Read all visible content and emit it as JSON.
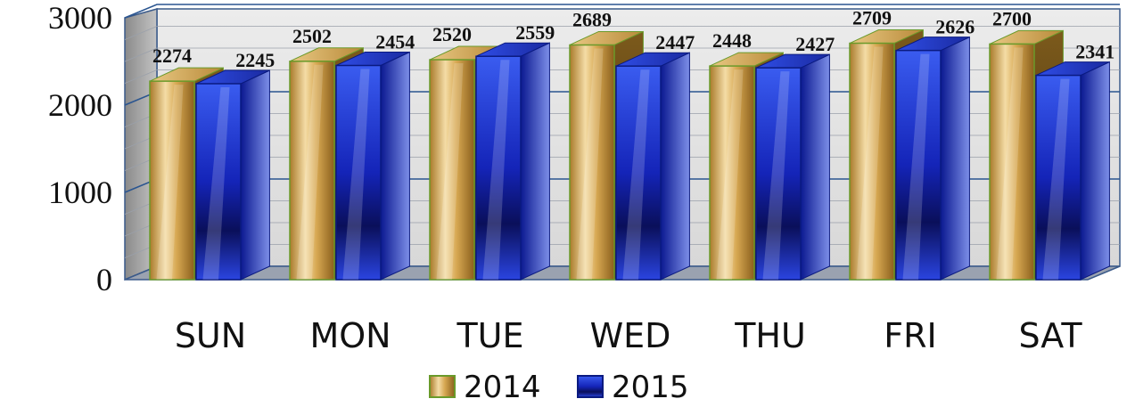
{
  "chart_data": {
    "type": "bar",
    "title": "",
    "xlabel": "",
    "ylabel": "",
    "categories": [
      "SUN",
      "MON",
      "TUE",
      "WED",
      "THU",
      "FRI",
      "SAT"
    ],
    "series": [
      {
        "name": "2014",
        "values": [
          2274,
          2502,
          2520,
          2689,
          2448,
          2709,
          2700
        ],
        "color": "#d4a650"
      },
      {
        "name": "2015",
        "values": [
          2245,
          2454,
          2559,
          2447,
          2427,
          2626,
          2341
        ],
        "color": "#1a2fc8"
      }
    ],
    "ylim": [
      0,
      3000
    ],
    "yticks": [
      0,
      1000,
      2000,
      3000
    ],
    "grid": true,
    "legend": "bottom"
  }
}
